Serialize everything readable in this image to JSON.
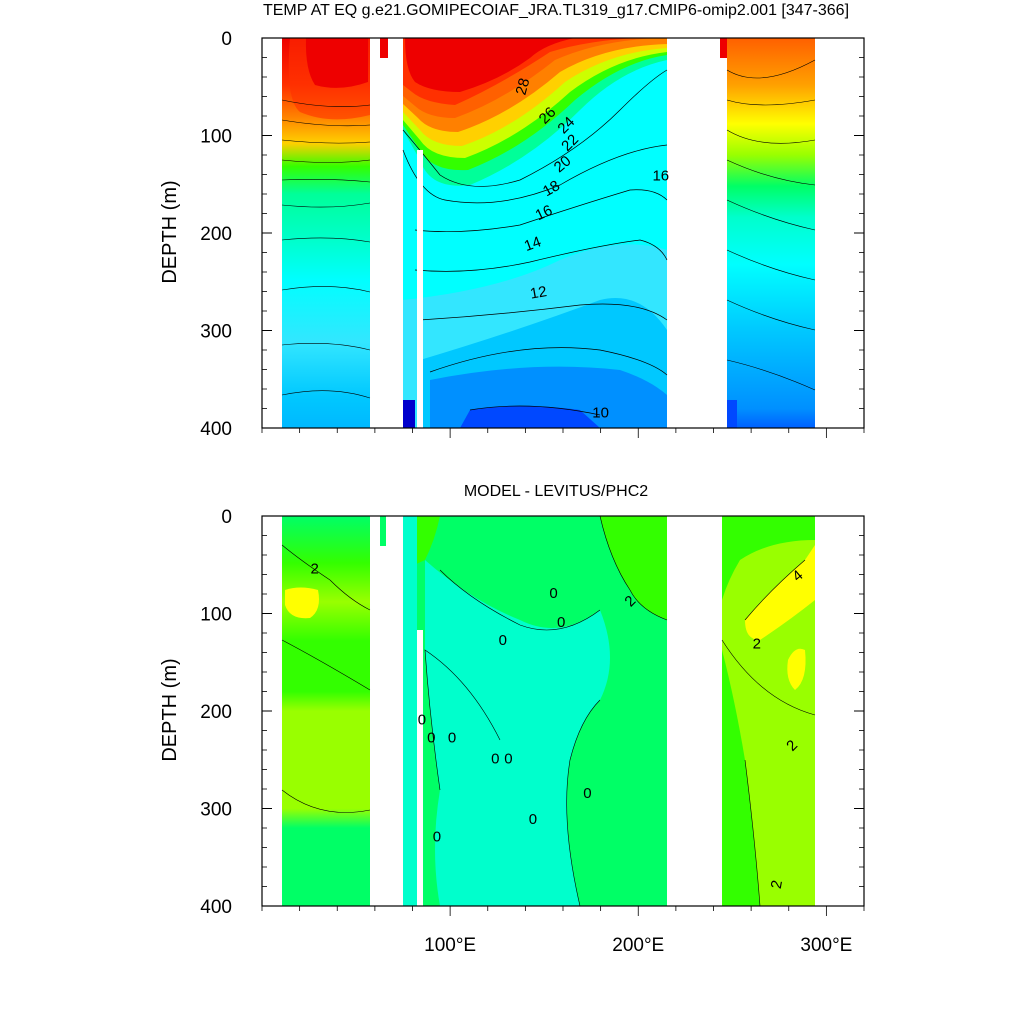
{
  "chart_data": [
    {
      "type": "heatmap",
      "title": "TEMP AT EQ g.e21.GOMIPECOIAF_JRA.TL319_g17.CMIP6-omip2.001 [347-366]",
      "ylabel": "DEPTH (m)",
      "xlabel": "",
      "x_range_deg": [
        0,
        320
      ],
      "ylim": [
        0,
        400
      ],
      "y_reversed": true,
      "y_ticks": [
        "0",
        "100",
        "200",
        "300",
        "400"
      ],
      "x_ticks": [],
      "contour_interval": 1,
      "colors": [
        "#0000cc",
        "#0048ff",
        "#0090ff",
        "#00c8ff",
        "#33e6ff",
        "#00ffff",
        "#00ffcc",
        "#00ff99",
        "#00ff33",
        "#33ff00",
        "#99ff00",
        "#ccff00",
        "#ffff00",
        "#ffd000",
        "#ffa000",
        "#ff8000",
        "#ff6000",
        "#ff3000",
        "#ee0000"
      ],
      "land_gaps_deg": [
        [
          60,
          74
        ],
        [
          82,
          85
        ],
        [
          220,
          252
        ],
        [
          300,
          320
        ]
      ],
      "ocean_segments_deg": [
        [
          10,
          60
        ],
        [
          74,
          82
        ],
        [
          85,
          220
        ],
        [
          252,
          300
        ]
      ],
      "contour_labels": [
        {
          "text": "28",
          "lon": 139,
          "depth": 50,
          "rot": -75
        },
        {
          "text": "26",
          "lon": 152,
          "depth": 80,
          "rot": -45
        },
        {
          "text": "24",
          "lon": 162,
          "depth": 90,
          "rot": -45
        },
        {
          "text": "22",
          "lon": 164,
          "depth": 108,
          "rot": -45
        },
        {
          "text": "20",
          "lon": 160,
          "depth": 130,
          "rot": -40
        },
        {
          "text": "18",
          "lon": 154,
          "depth": 155,
          "rot": -30
        },
        {
          "text": "16",
          "lon": 150,
          "depth": 180,
          "rot": -25
        },
        {
          "text": "14",
          "lon": 144,
          "depth": 212,
          "rot": -20
        },
        {
          "text": "12",
          "lon": 147,
          "depth": 262,
          "rot": -10
        },
        {
          "text": "10",
          "lon": 180,
          "depth": 385,
          "rot": 0
        },
        {
          "text": "16",
          "lon": 212,
          "depth": 142,
          "rot": 0
        }
      ]
    },
    {
      "type": "heatmap",
      "title": "MODEL - LEVITUS/PHC2",
      "ylabel": "DEPTH (m)",
      "xlabel": "",
      "x_range_deg": [
        0,
        320
      ],
      "ylim": [
        0,
        400
      ],
      "y_reversed": true,
      "y_ticks": [
        "0",
        "100",
        "200",
        "300",
        "400"
      ],
      "x_ticks": [
        "100°E",
        "200°E",
        "300°E"
      ],
      "x_tick_values": [
        100,
        200,
        300
      ],
      "colors": [
        "#00ffcc",
        "#00ff66",
        "#33ff00",
        "#99ff00",
        "#ffff00"
      ],
      "land_gaps_deg": [
        [
          60,
          74
        ],
        [
          82,
          85
        ],
        [
          220,
          252
        ],
        [
          300,
          320
        ]
      ],
      "ocean_segments_deg": [
        [
          10,
          60
        ],
        [
          74,
          82
        ],
        [
          85,
          220
        ],
        [
          252,
          300
        ]
      ],
      "contour_labels": [
        {
          "text": "2",
          "lon": 28,
          "depth": 55,
          "rot": 0
        },
        {
          "text": "0",
          "lon": 155,
          "depth": 80,
          "rot": 0
        },
        {
          "text": "0",
          "lon": 159,
          "depth": 110,
          "rot": 0
        },
        {
          "text": "0",
          "lon": 128,
          "depth": 128,
          "rot": 0
        },
        {
          "text": "2",
          "lon": 196,
          "depth": 88,
          "rot": -45
        },
        {
          "text": "2",
          "lon": 263,
          "depth": 132,
          "rot": 0
        },
        {
          "text": "4",
          "lon": 285,
          "depth": 62,
          "rot": -40
        },
        {
          "text": "2",
          "lon": 282,
          "depth": 236,
          "rot": -45
        },
        {
          "text": "0",
          "lon": 85,
          "depth": 210,
          "rot": 0
        },
        {
          "text": "0",
          "lon": 90,
          "depth": 228,
          "rot": 0
        },
        {
          "text": "0",
          "lon": 101,
          "depth": 228,
          "rot": 0
        },
        {
          "text": "0",
          "lon": 124,
          "depth": 250,
          "rot": 0
        },
        {
          "text": "0",
          "lon": 131,
          "depth": 250,
          "rot": 0
        },
        {
          "text": "0",
          "lon": 173,
          "depth": 285,
          "rot": 0
        },
        {
          "text": "0",
          "lon": 144,
          "depth": 312,
          "rot": 0
        },
        {
          "text": "0",
          "lon": 93,
          "depth": 330,
          "rot": 0
        },
        {
          "text": "2",
          "lon": 274,
          "depth": 378,
          "rot": -80
        }
      ]
    }
  ]
}
